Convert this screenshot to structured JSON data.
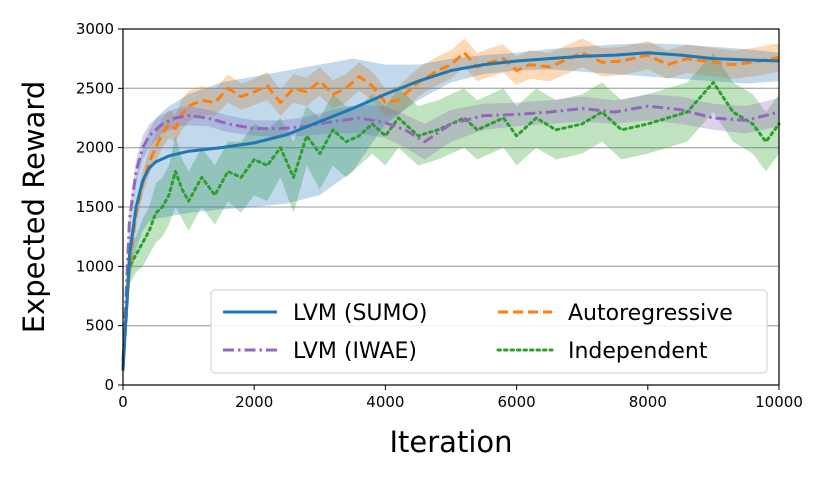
{
  "chart_data": {
    "type": "line",
    "title": "",
    "xlabel": "Iteration",
    "ylabel": "Expected Reward",
    "xlim": [
      0,
      10000
    ],
    "ylim": [
      0,
      3000
    ],
    "xticks": [
      0,
      2000,
      4000,
      6000,
      8000,
      10000
    ],
    "yticks": [
      0,
      500,
      1000,
      1500,
      2000,
      2500,
      3000
    ],
    "grid": "horizontal",
    "legend_position": "lower-right",
    "series": [
      {
        "name": "LVM (SUMO)",
        "color": "#1f77b4",
        "style": "solid",
        "x": [
          0,
          100,
          200,
          300,
          400,
          500,
          700,
          1000,
          1500,
          2000,
          2500,
          3000,
          3500,
          4000,
          4500,
          5000,
          5500,
          6000,
          6500,
          7000,
          7500,
          8000,
          8500,
          9000,
          9500,
          10000
        ],
        "y": [
          120,
          1100,
          1500,
          1720,
          1830,
          1880,
          1930,
          1970,
          2000,
          2040,
          2110,
          2220,
          2330,
          2450,
          2560,
          2650,
          2700,
          2730,
          2750,
          2770,
          2780,
          2800,
          2780,
          2750,
          2740,
          2730
        ],
        "lower": [
          80,
          850,
          1150,
          1300,
          1380,
          1400,
          1420,
          1450,
          1480,
          1500,
          1530,
          1600,
          1800,
          2200,
          2400,
          2550,
          2620,
          2650,
          2660,
          2640,
          2620,
          2600,
          2580,
          2560,
          2540,
          2560
        ],
        "upper": [
          160,
          1300,
          1750,
          2000,
          2150,
          2250,
          2350,
          2450,
          2550,
          2600,
          2650,
          2700,
          2750,
          2700,
          2700,
          2750,
          2780,
          2800,
          2830,
          2850,
          2870,
          2880,
          2870,
          2850,
          2830,
          2800
        ]
      },
      {
        "name": "LVM (IWAE)",
        "color": "#9467bd",
        "style": "dashdot",
        "x": [
          0,
          100,
          200,
          300,
          400,
          600,
          800,
          1000,
          1300,
          1600,
          2000,
          2400,
          2800,
          3200,
          3600,
          4000,
          4300,
          4600,
          5000,
          5500,
          6000,
          6500,
          7000,
          7500,
          8000,
          8500,
          9000,
          9500,
          10000
        ],
        "y": [
          200,
          1400,
          1800,
          2000,
          2100,
          2200,
          2250,
          2270,
          2250,
          2200,
          2160,
          2160,
          2180,
          2220,
          2250,
          2210,
          2150,
          2050,
          2200,
          2270,
          2280,
          2300,
          2330,
          2300,
          2350,
          2320,
          2250,
          2230,
          2300
        ],
        "lower": [
          150,
          1300,
          1700,
          1900,
          2000,
          2120,
          2170,
          2190,
          2180,
          2130,
          2100,
          2090,
          2100,
          2120,
          2120,
          2080,
          2000,
          1900,
          2050,
          2150,
          2180,
          2200,
          2220,
          2200,
          2230,
          2200,
          2150,
          2120,
          2180
        ],
        "upper": [
          250,
          1500,
          1900,
          2100,
          2200,
          2280,
          2330,
          2350,
          2320,
          2270,
          2230,
          2230,
          2260,
          2320,
          2360,
          2350,
          2280,
          2200,
          2320,
          2370,
          2380,
          2400,
          2430,
          2400,
          2450,
          2430,
          2370,
          2350,
          2420
        ]
      },
      {
        "name": "Autoregressive",
        "color": "#ff7f0e",
        "style": "dashed",
        "x": [
          0,
          100,
          200,
          300,
          400,
          500,
          600,
          700,
          800,
          900,
          1000,
          1200,
          1400,
          1600,
          1800,
          2000,
          2200,
          2400,
          2600,
          2800,
          3000,
          3200,
          3400,
          3600,
          3800,
          4000,
          4200,
          4500,
          4800,
          5000,
          5200,
          5400,
          5600,
          5800,
          6000,
          6200,
          6500,
          6800,
          7000,
          7300,
          7600,
          8000,
          8300,
          8600,
          9000,
          9300,
          9600,
          10000
        ],
        "y": [
          150,
          1000,
          1450,
          1700,
          1880,
          2000,
          2120,
          2200,
          2160,
          2280,
          2350,
          2400,
          2380,
          2500,
          2430,
          2470,
          2520,
          2380,
          2500,
          2470,
          2560,
          2450,
          2500,
          2600,
          2520,
          2380,
          2400,
          2550,
          2650,
          2700,
          2800,
          2680,
          2720,
          2750,
          2650,
          2700,
          2680,
          2750,
          2800,
          2720,
          2730,
          2780,
          2700,
          2750,
          2720,
          2700,
          2720,
          2760
        ],
        "lower": [
          100,
          900,
          1350,
          1600,
          1780,
          1880,
          2000,
          2080,
          2050,
          2150,
          2220,
          2280,
          2270,
          2380,
          2320,
          2360,
          2400,
          2270,
          2380,
          2350,
          2440,
          2330,
          2380,
          2480,
          2400,
          2260,
          2280,
          2430,
          2530,
          2580,
          2680,
          2560,
          2600,
          2630,
          2530,
          2580,
          2560,
          2630,
          2680,
          2600,
          2610,
          2660,
          2580,
          2630,
          2600,
          2580,
          2600,
          2640
        ],
        "upper": [
          200,
          1100,
          1550,
          1800,
          1980,
          2120,
          2240,
          2320,
          2270,
          2410,
          2480,
          2520,
          2490,
          2620,
          2540,
          2580,
          2640,
          2490,
          2620,
          2590,
          2680,
          2570,
          2620,
          2720,
          2640,
          2500,
          2520,
          2670,
          2770,
          2820,
          2920,
          2800,
          2840,
          2870,
          2770,
          2820,
          2800,
          2870,
          2920,
          2840,
          2850,
          2900,
          2820,
          2870,
          2840,
          2820,
          2840,
          2880
        ]
      },
      {
        "name": "Independent",
        "color": "#2ca02c",
        "style": "dotted",
        "x": [
          0,
          100,
          200,
          300,
          400,
          500,
          600,
          700,
          800,
          900,
          1000,
          1200,
          1400,
          1600,
          1800,
          2000,
          2200,
          2400,
          2600,
          2800,
          3000,
          3200,
          3400,
          3600,
          3800,
          4000,
          4200,
          4500,
          4800,
          5000,
          5200,
          5400,
          5600,
          5800,
          6000,
          6300,
          6600,
          7000,
          7300,
          7600,
          8000,
          8300,
          8600,
          9000,
          9300,
          9600,
          9800,
          10000
        ],
        "y": [
          200,
          1000,
          1100,
          1200,
          1300,
          1450,
          1500,
          1600,
          1800,
          1650,
          1550,
          1750,
          1600,
          1800,
          1750,
          1900,
          1850,
          2000,
          1750,
          2100,
          1950,
          2150,
          2050,
          2100,
          2200,
          2100,
          2250,
          2100,
          2150,
          2200,
          2250,
          2150,
          2200,
          2250,
          2100,
          2250,
          2150,
          2200,
          2300,
          2150,
          2200,
          2250,
          2300,
          2550,
          2300,
          2200,
          2050,
          2200
        ],
        "lower": [
          150,
          850,
          950,
          1000,
          1100,
          1200,
          1250,
          1350,
          1500,
          1400,
          1300,
          1500,
          1350,
          1550,
          1450,
          1600,
          1550,
          1750,
          1450,
          1850,
          1650,
          1850,
          1750,
          1850,
          1950,
          1850,
          2000,
          1850,
          1900,
          1950,
          2000,
          1900,
          1950,
          2000,
          1850,
          2000,
          1900,
          1950,
          2050,
          1900,
          1950,
          2000,
          2050,
          2300,
          2050,
          1950,
          1800,
          1950
        ],
        "upper": [
          250,
          1150,
          1250,
          1400,
          1500,
          1700,
          1750,
          1850,
          2100,
          1900,
          1800,
          2000,
          1850,
          2050,
          2050,
          2200,
          2150,
          2250,
          2050,
          2350,
          2250,
          2450,
          2350,
          2350,
          2450,
          2350,
          2500,
          2350,
          2400,
          2450,
          2500,
          2400,
          2450,
          2500,
          2350,
          2500,
          2400,
          2450,
          2550,
          2400,
          2450,
          2500,
          2550,
          2800,
          2550,
          2450,
          2300,
          2450
        ]
      }
    ],
    "legend": [
      {
        "label": "LVM (SUMO)"
      },
      {
        "label": "Autoregressive"
      },
      {
        "label": "LVM (IWAE)"
      },
      {
        "label": "Independent"
      }
    ]
  }
}
